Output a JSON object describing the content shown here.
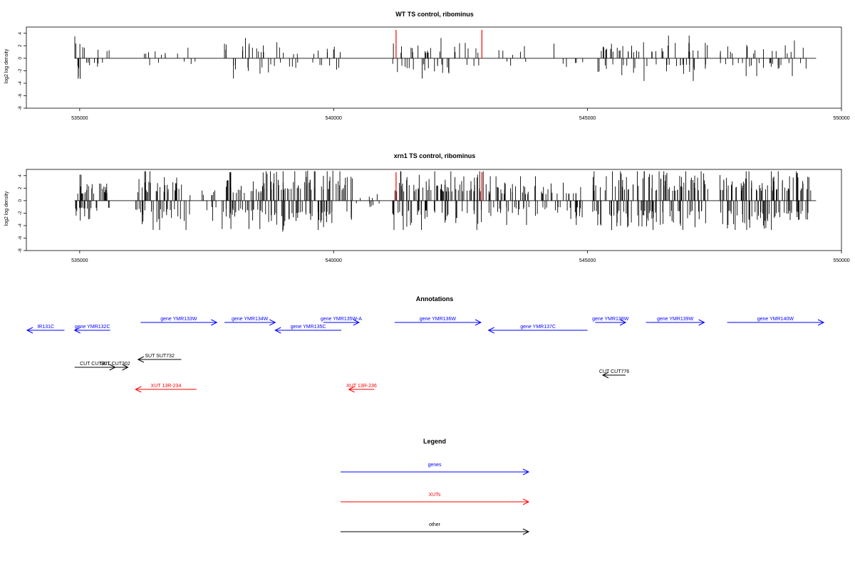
{
  "chart_data": [
    {
      "type": "bar",
      "title": "WT TS control, ribominus",
      "xlabel": "",
      "ylabel": "log2 log density",
      "xlim": [
        533950,
        550000
      ],
      "ylim": [
        -8,
        5
      ],
      "x_ticks": [
        535000,
        540000,
        545000,
        550000
      ],
      "y_ticks": [
        -8,
        -6,
        -4,
        -2,
        0,
        2,
        4
      ],
      "x_tick_labels": [
        "535000",
        "540000",
        "545000",
        "550000"
      ],
      "y_tick_labels": [
        "-8",
        "-6",
        "-4",
        "-2",
        "0",
        "2",
        "4"
      ],
      "data_range": [
        534900,
        549500
      ],
      "highlight_positions": [
        541230,
        542920
      ],
      "highlight_color": "#ff0000",
      "bar_color": "#000000",
      "regions": [
        {
          "start": 534900,
          "end": 535100,
          "count": 10,
          "amp": 3.5,
          "seed": 1
        },
        {
          "start": 535100,
          "end": 535600,
          "count": 10,
          "amp": 2.0,
          "seed": 2
        },
        {
          "start": 536100,
          "end": 536900,
          "count": 9,
          "amp": 1.6,
          "seed": 3
        },
        {
          "start": 536900,
          "end": 537400,
          "count": 5,
          "amp": 1.3,
          "seed": 4
        },
        {
          "start": 537800,
          "end": 538400,
          "count": 14,
          "amp": 2.5,
          "seed": 5
        },
        {
          "start": 538400,
          "end": 538900,
          "count": 12,
          "amp": 2.8,
          "seed": 6
        },
        {
          "start": 538900,
          "end": 539600,
          "count": 10,
          "amp": 1.8,
          "seed": 7
        },
        {
          "start": 539600,
          "end": 540300,
          "count": 12,
          "amp": 2.0,
          "seed": 8
        },
        {
          "start": 541150,
          "end": 542870,
          "count": 45,
          "amp": 2.5,
          "seed": 9
        },
        {
          "start": 543200,
          "end": 544000,
          "count": 8,
          "amp": 1.5,
          "seed": 10
        },
        {
          "start": 544000,
          "end": 545000,
          "count": 6,
          "amp": 1.8,
          "seed": 11
        },
        {
          "start": 545200,
          "end": 547400,
          "count": 70,
          "amp": 2.8,
          "seed": 12
        },
        {
          "start": 547600,
          "end": 549400,
          "count": 40,
          "amp": 2.2,
          "seed": 13
        }
      ]
    },
    {
      "type": "bar",
      "title": "xrn1 TS control, ribominus",
      "xlabel": "",
      "ylabel": "log2 log density",
      "xlim": [
        533950,
        550000
      ],
      "ylim": [
        -8,
        5
      ],
      "x_ticks": [
        535000,
        540000,
        545000,
        550000
      ],
      "y_ticks": [
        -8,
        -6,
        -4,
        -2,
        0,
        2,
        4
      ],
      "x_tick_labels": [
        "535000",
        "540000",
        "545000",
        "550000"
      ],
      "y_tick_labels": [
        "-8",
        "-6",
        "-4",
        "-2",
        "0",
        "2",
        "4"
      ],
      "data_range": [
        534900,
        549500
      ],
      "highlight_positions": [
        541230,
        542920
      ],
      "highlight_color": "#ff0000",
      "bar_color": "#000000",
      "regions": [
        {
          "start": 534900,
          "end": 535600,
          "count": 45,
          "amp": 3.2,
          "seed": 21
        },
        {
          "start": 536100,
          "end": 537100,
          "count": 60,
          "amp": 3.8,
          "seed": 22
        },
        {
          "start": 537100,
          "end": 537700,
          "count": 12,
          "amp": 2.5,
          "seed": 23
        },
        {
          "start": 537800,
          "end": 538600,
          "count": 55,
          "amp": 3.5,
          "seed": 24
        },
        {
          "start": 538600,
          "end": 540400,
          "count": 110,
          "amp": 5.0,
          "seed": 25
        },
        {
          "start": 540400,
          "end": 541100,
          "count": 10,
          "amp": 1.2,
          "seed": 26
        },
        {
          "start": 541150,
          "end": 542950,
          "count": 110,
          "amp": 4.2,
          "seed": 27
        },
        {
          "start": 543000,
          "end": 545000,
          "count": 90,
          "amp": 3.0,
          "seed": 28
        },
        {
          "start": 545100,
          "end": 547400,
          "count": 140,
          "amp": 4.5,
          "seed": 29
        },
        {
          "start": 547600,
          "end": 549400,
          "count": 130,
          "amp": 4.5,
          "seed": 30
        }
      ]
    }
  ],
  "annotations": {
    "title": "Annotations",
    "items": [
      {
        "label": "IR131C",
        "start": 533950,
        "end": 534700,
        "row": 1,
        "strand": "-",
        "color": "#0000ff"
      },
      {
        "label": "gene YMR132C",
        "start": 534900,
        "end": 535600,
        "row": 1,
        "strand": "-",
        "color": "#0000ff"
      },
      {
        "label": "gene YMR133W",
        "start": 536200,
        "end": 537700,
        "row": 0,
        "strand": "+",
        "color": "#0000ff"
      },
      {
        "label": "gene YMR134W",
        "start": 537850,
        "end": 538850,
        "row": 0,
        "strand": "+",
        "color": "#0000ff"
      },
      {
        "label": "gene YMR135C",
        "start": 538850,
        "end": 540150,
        "row": 1,
        "strand": "-",
        "color": "#0000ff"
      },
      {
        "label": "gene YMR135W-A",
        "start": 539800,
        "end": 540500,
        "row": 0,
        "strand": "+",
        "color": "#0000ff"
      },
      {
        "label": "gene YMR136W",
        "start": 541200,
        "end": 542900,
        "row": 0,
        "strand": "+",
        "color": "#0000ff"
      },
      {
        "label": "gene YMR137C",
        "start": 543050,
        "end": 545000,
        "row": 1,
        "strand": "-",
        "color": "#0000ff"
      },
      {
        "label": "gene YMR138W",
        "start": 545150,
        "end": 545750,
        "row": 0,
        "strand": "+",
        "color": "#0000ff"
      },
      {
        "label": "gene YMR139W",
        "start": 546150,
        "end": 547300,
        "row": 0,
        "strand": "+",
        "color": "#0000ff"
      },
      {
        "label": "gene YMR140W",
        "start": 547750,
        "end": 549650,
        "row": 0,
        "strand": "+",
        "color": "#0000ff"
      },
      {
        "label": "SUT SUT732",
        "start": 536150,
        "end": 537000,
        "row": 3,
        "strand": "-",
        "color": "#000000"
      },
      {
        "label": "CUT CUT301",
        "start": 534900,
        "end": 535700,
        "row": 4,
        "strand": "+",
        "color": "#000000"
      },
      {
        "label": "SUT CUT302",
        "start": 535450,
        "end": 535950,
        "row": 4,
        "strand": "+",
        "color": "#000000"
      },
      {
        "label": "CUT CUT776",
        "start": 545300,
        "end": 545750,
        "row": 5,
        "strand": "-",
        "color": "#000000"
      },
      {
        "label": "XUT 13R-234",
        "start": 536100,
        "end": 537300,
        "row": 6,
        "strand": "-",
        "color": "#ff0000"
      },
      {
        "label": "XUT 13R-236",
        "start": 540300,
        "end": 540800,
        "row": 6,
        "strand": "-",
        "color": "#ff0000"
      }
    ]
  },
  "legend": {
    "title": "Legend",
    "items": [
      {
        "label": "genes",
        "color": "#0000ff"
      },
      {
        "label": "XUTs",
        "color": "#ff0000"
      },
      {
        "label": "other",
        "color": "#000000"
      }
    ]
  }
}
